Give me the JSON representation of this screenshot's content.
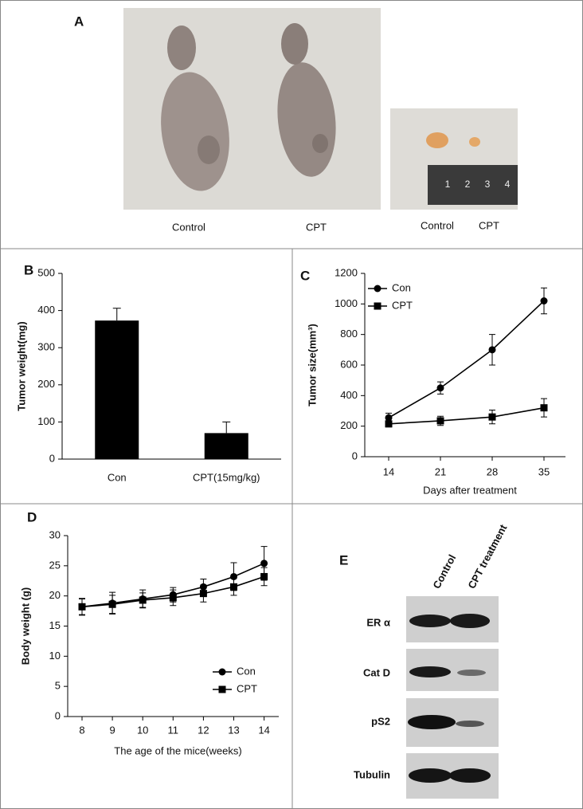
{
  "panel_a": {
    "label": "A",
    "captions": [
      "Control",
      "CPT",
      "Control",
      "CPT"
    ],
    "ruler_labels": [
      "1",
      "2",
      "3",
      "4"
    ]
  },
  "chart_data": [
    {
      "type": "bar",
      "panel_label": "B",
      "ylabel": "Tumor weight(mg)",
      "categories": [
        "Con",
        "CPT(15mg/kg)"
      ],
      "values": [
        373,
        70
      ],
      "errors": [
        33,
        30
      ],
      "color": "#000000",
      "ylim": [
        0,
        500
      ],
      "yticks": [
        0,
        100,
        200,
        300,
        400,
        500
      ],
      "grid": false
    },
    {
      "type": "line",
      "panel_label": "C",
      "ylabel": "Tumor size(mm³)",
      "xlabel": "Days after treatment",
      "categories": [
        "14",
        "21",
        "28",
        "35"
      ],
      "ylim": [
        0,
        1200
      ],
      "yticks": [
        0,
        200,
        400,
        600,
        800,
        1000,
        1200
      ],
      "grid": false,
      "legend": "upper left",
      "series": [
        {
          "name": "Con",
          "color": "#000000",
          "marker": "circle",
          "values": [
            255,
            450,
            700,
            1020
          ],
          "errors": [
            30,
            40,
            100,
            85
          ]
        },
        {
          "name": "CPT",
          "color": "#000000",
          "marker": "square",
          "values": [
            215,
            235,
            260,
            320
          ],
          "errors": [
            20,
            30,
            45,
            60
          ]
        }
      ]
    },
    {
      "type": "line",
      "panel_label": "D",
      "ylabel": "Body weight (g)",
      "xlabel": "The age of the mice(weeks)",
      "categories": [
        "8",
        "9",
        "10",
        "11",
        "12",
        "13",
        "14"
      ],
      "ylim": [
        0,
        30
      ],
      "yticks": [
        0,
        5,
        10,
        15,
        20,
        25,
        30
      ],
      "grid": false,
      "legend": "lower right",
      "series": [
        {
          "name": "Con",
          "color": "#000000",
          "marker": "circle",
          "values": [
            18.2,
            18.8,
            19.5,
            20.2,
            21.5,
            23.2,
            25.4
          ],
          "errors": [
            1.4,
            1.8,
            1.5,
            1.2,
            1.3,
            2.3,
            2.8
          ]
        },
        {
          "name": "CPT",
          "color": "#000000",
          "marker": "square",
          "values": [
            18.2,
            18.6,
            19.3,
            19.7,
            20.4,
            21.5,
            23.2
          ],
          "errors": [
            1.3,
            1.5,
            1.2,
            1.3,
            1.4,
            1.4,
            1.5
          ]
        }
      ]
    }
  ],
  "panel_e": {
    "label": "E",
    "columns": [
      "Control",
      "CPT treatment"
    ],
    "rows": [
      "ER α",
      "Cat D",
      "pS2",
      "Tubulin"
    ]
  }
}
